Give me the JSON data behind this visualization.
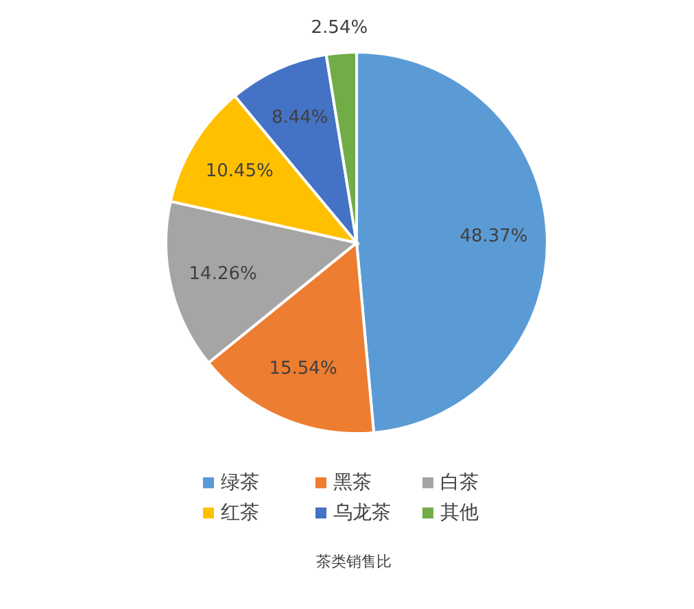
{
  "chart_data": {
    "type": "pie",
    "title": "茶类销售比",
    "categories": [
      "绿茶",
      "黑茶",
      "白茶",
      "红茶",
      "乌龙茶",
      "其他"
    ],
    "values": [
      48.37,
      15.54,
      14.26,
      10.45,
      8.44,
      2.54
    ],
    "value_labels": [
      "48.37%",
      "15.54%",
      "14.26%",
      "10.45%",
      "8.44%",
      "2.54%"
    ],
    "colors": [
      "#5b9bd5",
      "#ed7d31",
      "#a5a5a5",
      "#ffc000",
      "#4472c4",
      "#70ad47"
    ],
    "legend": "bottom"
  }
}
